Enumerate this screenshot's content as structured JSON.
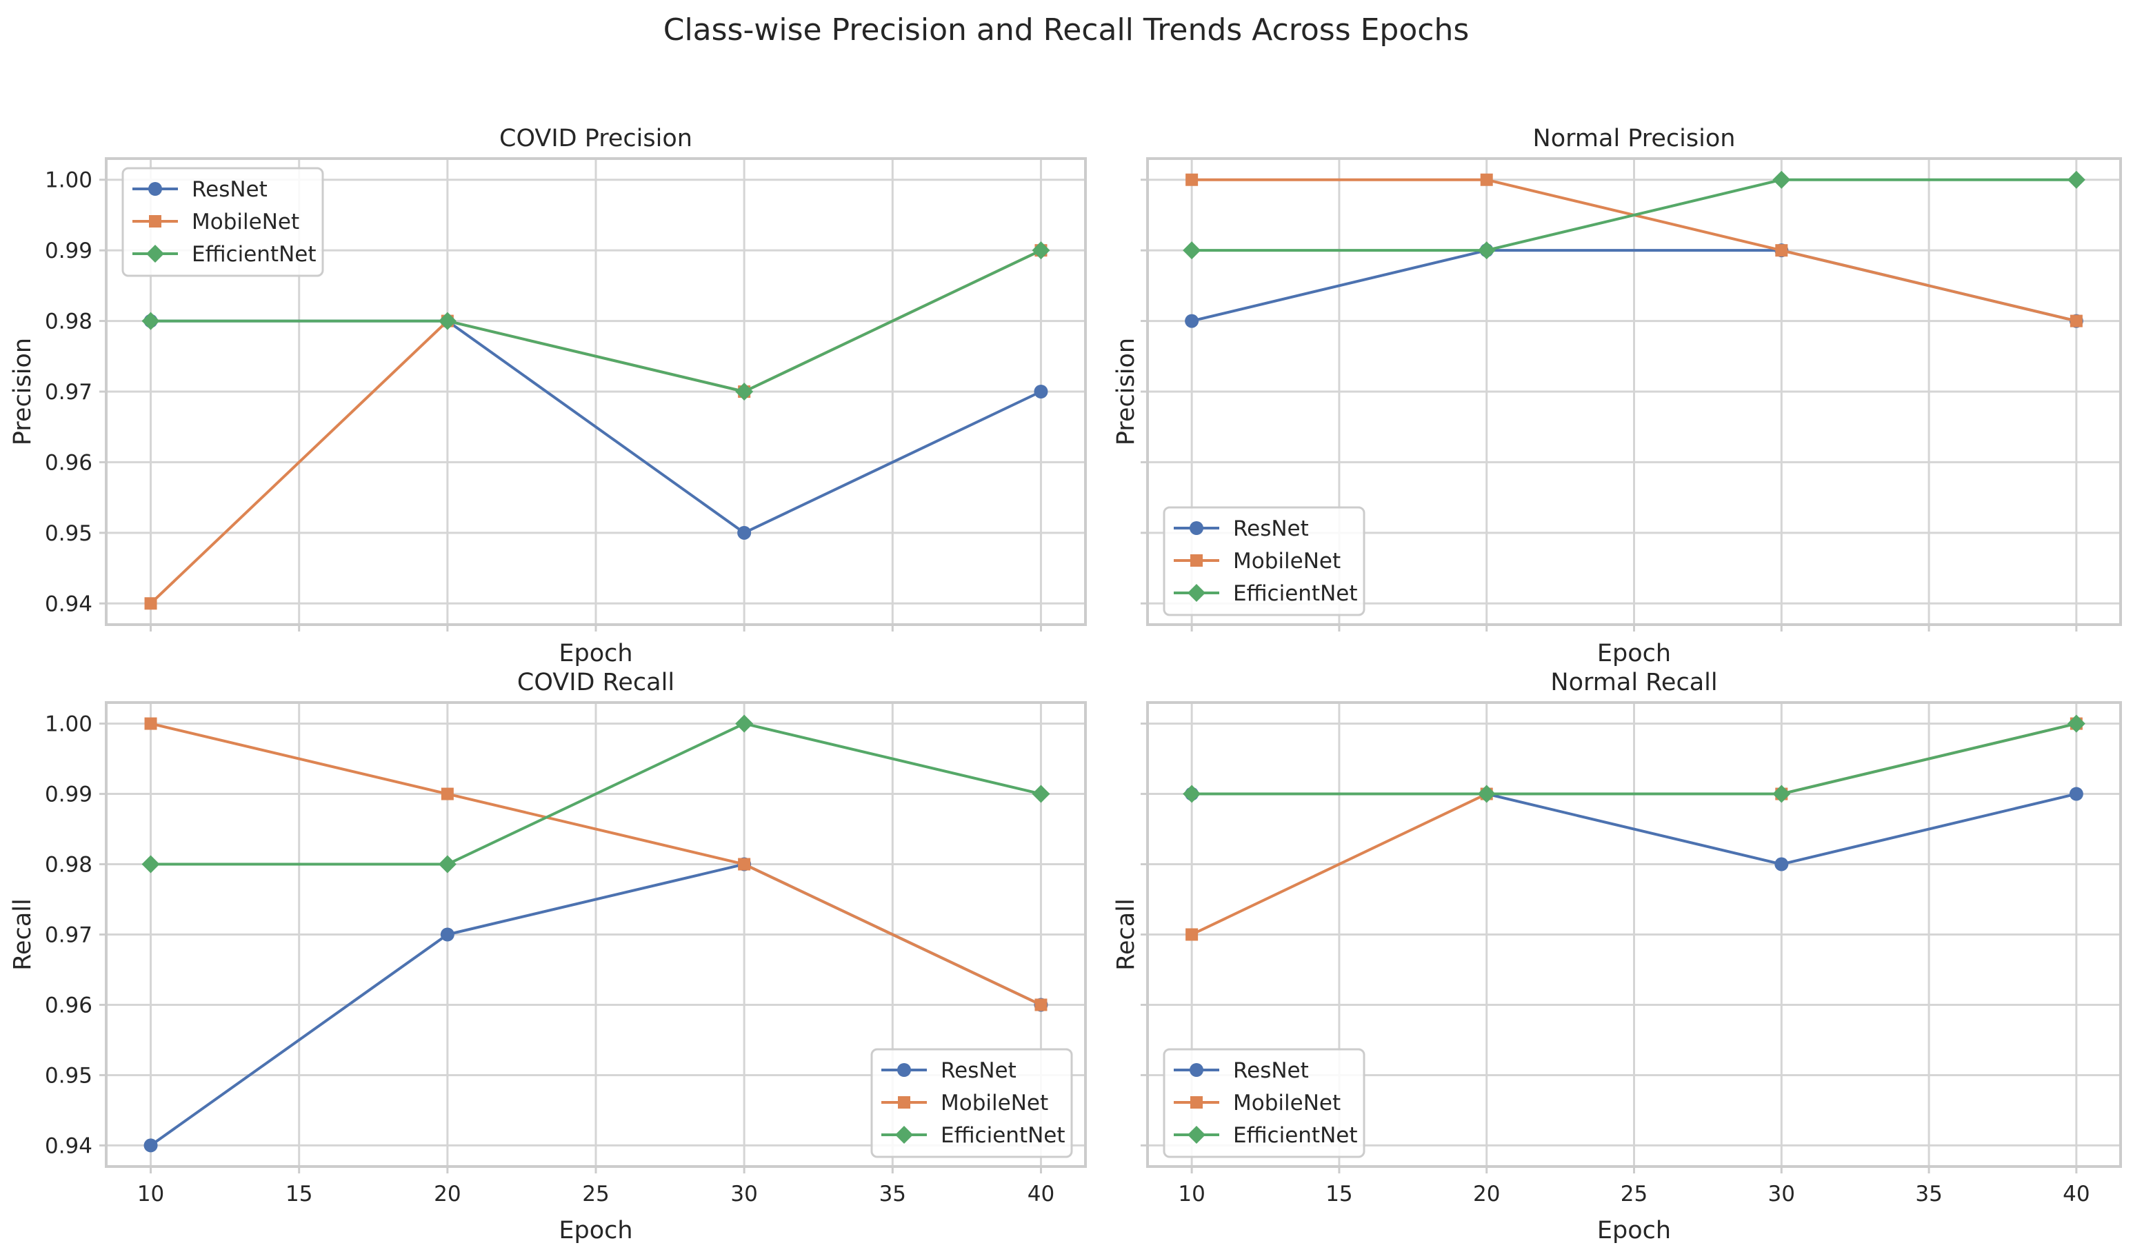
{
  "figure": {
    "title": "Class-wise Precision and Recall Trends Across Epochs"
  },
  "colors": {
    "ResNet": "#4c72b0",
    "MobileNet": "#dd8452",
    "EfficientNet": "#55a868",
    "grid": "#d5d5d5",
    "frame": "#cccccc",
    "text": "#262626"
  },
  "chart_data": [
    {
      "type": "line",
      "title": "COVID Precision",
      "xlabel": "Epoch",
      "ylabel": "Precision",
      "x": [
        10,
        20,
        30,
        40
      ],
      "xticks": [
        10,
        15,
        20,
        25,
        30,
        35,
        40
      ],
      "yticks": [
        0.94,
        0.95,
        0.96,
        0.97,
        0.98,
        0.99,
        1.0
      ],
      "ytick_labels": [
        "0.94",
        "0.95",
        "0.96",
        "0.97",
        "0.98",
        "0.99",
        "1.00"
      ],
      "xlim": [
        8.5,
        41.5
      ],
      "ylim": [
        0.937,
        1.003
      ],
      "show_xtick_labels": false,
      "show_ytick_labels": true,
      "legend": "upper-left",
      "series": [
        {
          "name": "ResNet",
          "marker": "circle",
          "values": [
            0.98,
            0.98,
            0.95,
            0.97
          ]
        },
        {
          "name": "MobileNet",
          "marker": "square",
          "values": [
            0.94,
            0.98,
            0.97,
            0.99
          ]
        },
        {
          "name": "EfficientNet",
          "marker": "diamond",
          "values": [
            0.98,
            0.98,
            0.97,
            0.99
          ]
        }
      ]
    },
    {
      "type": "line",
      "title": "Normal Precision",
      "xlabel": "Epoch",
      "ylabel": "Precision",
      "x": [
        10,
        20,
        30,
        40
      ],
      "xticks": [
        10,
        15,
        20,
        25,
        30,
        35,
        40
      ],
      "yticks": [
        0.94,
        0.95,
        0.96,
        0.97,
        0.98,
        0.99,
        1.0
      ],
      "ytick_labels": [
        "0.94",
        "0.95",
        "0.96",
        "0.97",
        "0.98",
        "0.99",
        "1.00"
      ],
      "xlim": [
        8.5,
        41.5
      ],
      "ylim": [
        0.937,
        1.003
      ],
      "show_xtick_labels": false,
      "show_ytick_labels": false,
      "legend": "lower-left",
      "series": [
        {
          "name": "ResNet",
          "marker": "circle",
          "values": [
            0.98,
            0.99,
            0.99,
            0.98
          ]
        },
        {
          "name": "MobileNet",
          "marker": "square",
          "values": [
            1.0,
            1.0,
            0.99,
            0.98
          ]
        },
        {
          "name": "EfficientNet",
          "marker": "diamond",
          "values": [
            0.99,
            0.99,
            1.0,
            1.0
          ]
        }
      ]
    },
    {
      "type": "line",
      "title": "COVID Recall",
      "xlabel": "Epoch",
      "ylabel": "Recall",
      "x": [
        10,
        20,
        30,
        40
      ],
      "xticks": [
        10,
        15,
        20,
        25,
        30,
        35,
        40
      ],
      "yticks": [
        0.94,
        0.95,
        0.96,
        0.97,
        0.98,
        0.99,
        1.0
      ],
      "ytick_labels": [
        "0.94",
        "0.95",
        "0.96",
        "0.97",
        "0.98",
        "0.99",
        "1.00"
      ],
      "xlim": [
        8.5,
        41.5
      ],
      "ylim": [
        0.937,
        1.003
      ],
      "show_xtick_labels": true,
      "show_ytick_labels": true,
      "legend": "lower-right",
      "series": [
        {
          "name": "ResNet",
          "marker": "circle",
          "values": [
            0.94,
            0.97,
            0.98,
            0.96
          ]
        },
        {
          "name": "MobileNet",
          "marker": "square",
          "values": [
            1.0,
            0.99,
            0.98,
            0.96
          ]
        },
        {
          "name": "EfficientNet",
          "marker": "diamond",
          "values": [
            0.98,
            0.98,
            1.0,
            0.99
          ]
        }
      ]
    },
    {
      "type": "line",
      "title": "Normal Recall",
      "xlabel": "Epoch",
      "ylabel": "Recall",
      "x": [
        10,
        20,
        30,
        40
      ],
      "xticks": [
        10,
        15,
        20,
        25,
        30,
        35,
        40
      ],
      "yticks": [
        0.94,
        0.95,
        0.96,
        0.97,
        0.98,
        0.99,
        1.0
      ],
      "ytick_labels": [
        "0.94",
        "0.95",
        "0.96",
        "0.97",
        "0.98",
        "0.99",
        "1.00"
      ],
      "xlim": [
        8.5,
        41.5
      ],
      "ylim": [
        0.937,
        1.003
      ],
      "show_xtick_labels": true,
      "show_ytick_labels": false,
      "legend": "lower-left",
      "series": [
        {
          "name": "ResNet",
          "marker": "circle",
          "values": [
            0.99,
            0.99,
            0.98,
            0.99
          ]
        },
        {
          "name": "MobileNet",
          "marker": "square",
          "values": [
            0.97,
            0.99,
            0.99,
            1.0
          ]
        },
        {
          "name": "EfficientNet",
          "marker": "diamond",
          "values": [
            0.99,
            0.99,
            0.99,
            1.0
          ]
        }
      ]
    }
  ]
}
